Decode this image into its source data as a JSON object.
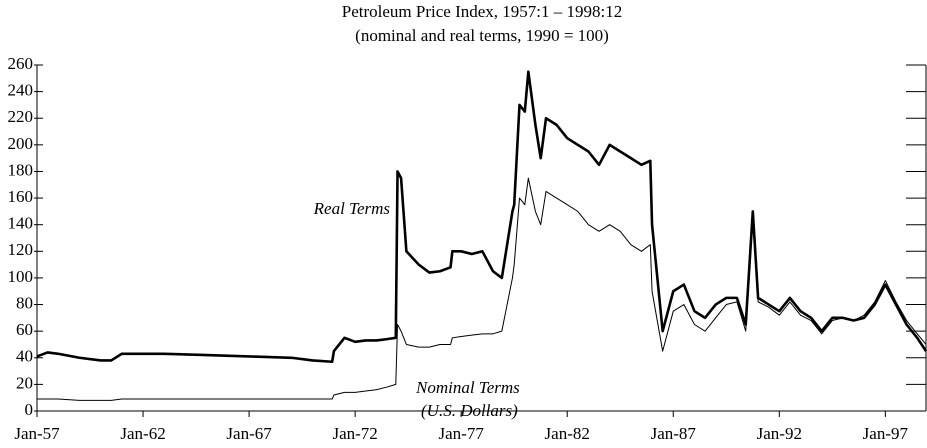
{
  "chart_data": {
    "type": "line",
    "title": "Petroleum Price Index, 1957:1 – 1998:12",
    "subtitle": "(nominal and real terms, 1990 = 100)",
    "x": [
      "Jan-57",
      "Jul-57",
      "Jan-58",
      "Jan-59",
      "Jan-60",
      "Jul-60",
      "Jan-61",
      "Jan-63",
      "Jan-65",
      "Jan-67",
      "Jan-69",
      "Jan-70",
      "Dec-70",
      "Jan-71",
      "Jul-71",
      "Jan-72",
      "Jul-72",
      "Jan-73",
      "Jul-73",
      "Dec-73",
      "Jan-74",
      "Mar-74",
      "Jun-74",
      "Jan-75",
      "Jul-75",
      "Jan-76",
      "Jul-76",
      "Aug-76",
      "Jan-77",
      "Jul-77",
      "Jan-78",
      "Jul-78",
      "Dec-78",
      "Mar-79",
      "Jun-79",
      "Jul-79",
      "Oct-79",
      "Jan-80",
      "Mar-80",
      "Jul-80",
      "Oct-80",
      "Jan-81",
      "Jul-81",
      "Jan-82",
      "Jul-82",
      "Jan-83",
      "Jul-83",
      "Jan-84",
      "Jul-84",
      "Jan-85",
      "Jul-85",
      "Dec-85",
      "Jan-86",
      "Jul-86",
      "Jan-87",
      "Jul-87",
      "Jan-88",
      "Jul-88",
      "Jan-89",
      "Jul-89",
      "Jan-90",
      "Jun-90",
      "Oct-90",
      "Jan-91",
      "Jul-91",
      "Jan-92",
      "Jul-92",
      "Jan-93",
      "Jul-93",
      "Jan-94",
      "Jul-94",
      "Jan-95",
      "Jul-95",
      "Jan-96",
      "Jul-96",
      "Jan-97",
      "Jul-97",
      "Jan-98",
      "Jul-98",
      "Dec-98"
    ],
    "series": [
      {
        "name": "Real Terms",
        "color": "#000000",
        "values": [
          41,
          44,
          43,
          40,
          38,
          38,
          43,
          43,
          42,
          41,
          40,
          38,
          37,
          45,
          55,
          52,
          53,
          53,
          54,
          55,
          180,
          175,
          120,
          110,
          104,
          105,
          108,
          120,
          120,
          118,
          120,
          105,
          100,
          125,
          150,
          155,
          230,
          225,
          255,
          215,
          190,
          220,
          215,
          205,
          200,
          195,
          185,
          200,
          195,
          190,
          185,
          188,
          140,
          60,
          90,
          95,
          75,
          70,
          80,
          85,
          85,
          65,
          150,
          85,
          80,
          75,
          85,
          75,
          70,
          60,
          70,
          70,
          68,
          70,
          80,
          95,
          80,
          65,
          55,
          45
        ]
      },
      {
        "name": "Nominal Terms",
        "color": "#000000",
        "values": [
          9,
          9,
          9,
          8,
          8,
          8,
          9,
          9,
          9,
          9,
          9,
          9,
          9,
          12,
          14,
          14,
          15,
          16,
          18,
          20,
          65,
          60,
          50,
          48,
          48,
          50,
          50,
          55,
          56,
          57,
          58,
          58,
          60,
          80,
          100,
          110,
          160,
          155,
          175,
          150,
          140,
          165,
          160,
          155,
          150,
          140,
          135,
          140,
          135,
          125,
          120,
          125,
          90,
          45,
          75,
          80,
          65,
          60,
          70,
          80,
          82,
          60,
          145,
          82,
          78,
          72,
          82,
          72,
          68,
          58,
          68,
          70,
          68,
          72,
          82,
          98,
          82,
          68,
          58,
          50
        ]
      }
    ],
    "annotation": "(U.S. Dollars)",
    "xlim": [
      "Jan-57",
      "Dec-98"
    ],
    "xticks": [
      "Jan-57",
      "Jan-62",
      "Jan-67",
      "Jan-72",
      "Jan-77",
      "Jan-82",
      "Jan-87",
      "Jan-92",
      "Jan-97"
    ],
    "ylim": [
      0,
      260
    ],
    "yticks": [
      0,
      20,
      40,
      60,
      80,
      100,
      120,
      140,
      160,
      180,
      200,
      220,
      240,
      260
    ]
  }
}
